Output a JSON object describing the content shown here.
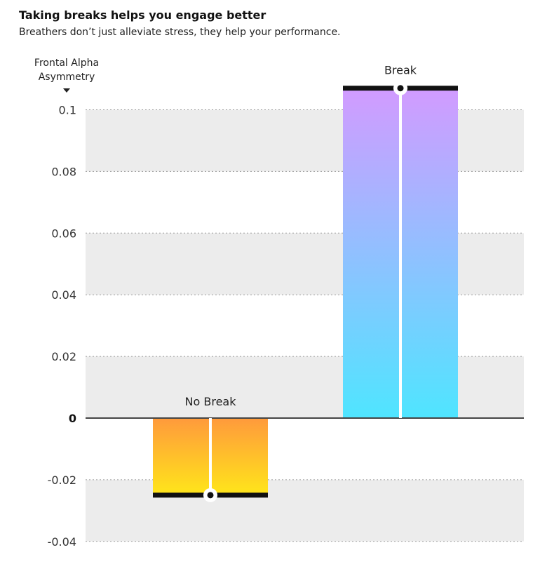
{
  "header": {
    "title": "Taking breaks helps you engage better",
    "subtitle": "Breathers don’t just alleviate stress, they help your performance."
  },
  "chart_data": {
    "type": "bar",
    "categories": [
      "No Break",
      "Break"
    ],
    "values": [
      -0.025,
      0.107
    ],
    "ylabel_lines": [
      "Frontal Alpha",
      "Asymmetry"
    ],
    "ylim": [
      -0.04,
      0.1
    ],
    "yticks": [
      0.1,
      0.08,
      0.06,
      0.04,
      0.02,
      0,
      -0.02,
      -0.04
    ],
    "ytick_labels": [
      "0.1",
      "0.08",
      "0.06",
      "0.04",
      "0.02",
      "0",
      "-0.02",
      "-0.04"
    ],
    "grid": true,
    "bar_gradients": [
      {
        "from": "#FF9A3C",
        "to": "#FFE61A"
      },
      {
        "from": "#D29BFF",
        "to": "#4FE5FF"
      }
    ]
  }
}
